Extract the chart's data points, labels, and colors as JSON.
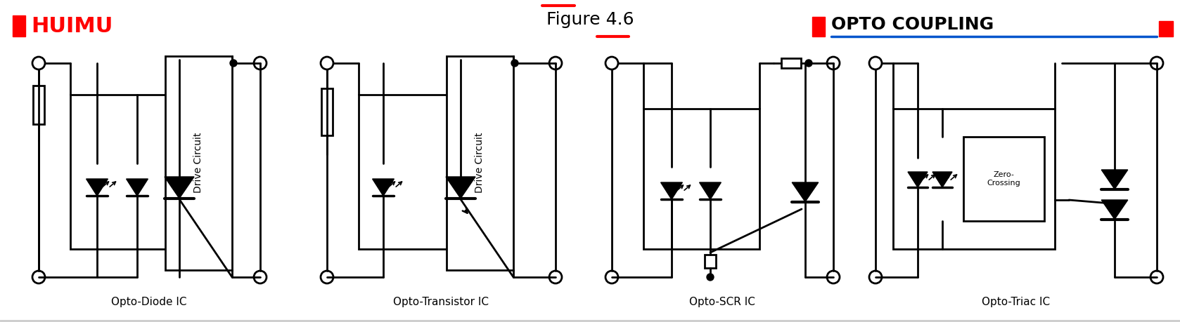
{
  "title": "Figure 4.6",
  "logo_text": "HUIMU",
  "brand_text": "OPTO COUPLING",
  "labels": [
    "Opto-Diode IC",
    "Opto-Transistor IC",
    "Opto-SCR IC",
    "Opto-Triac IC"
  ],
  "bg_color": "#ffffff",
  "black": "#000000",
  "red": "#ff0000",
  "blue": "#0055cc",
  "logo_red": "#ff0000",
  "label_color": "#000000",
  "figsize": [
    16.78,
    4.59
  ],
  "dpi": 100
}
